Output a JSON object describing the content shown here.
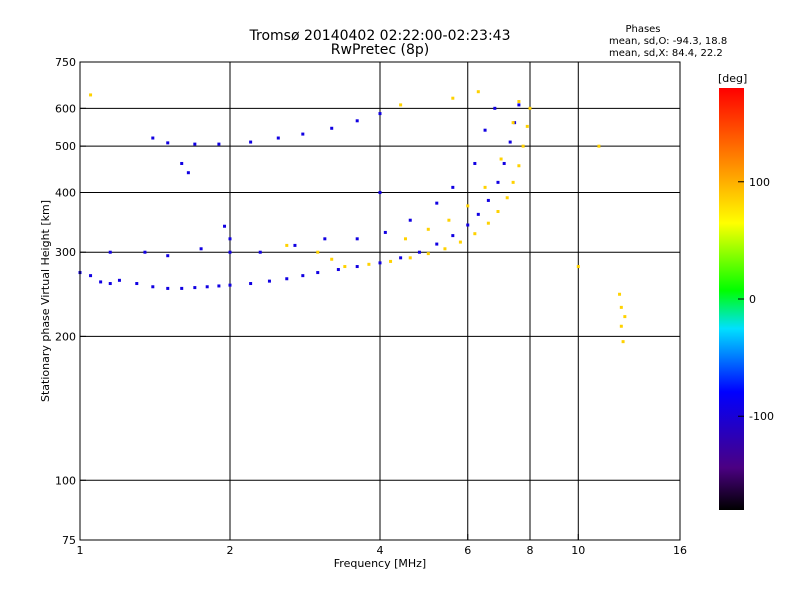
{
  "chart_data": {
    "type": "scatter",
    "title": "Tromsø 20140402 02:22:00-02:23:43",
    "subtitle": "RwPretec (8p)",
    "xlabel": "Frequency [MHz]",
    "ylabel": "Stationary phase Virtual Height [km]",
    "x_scale": "log",
    "y_scale": "log",
    "xlim": [
      1,
      16
    ],
    "ylim": [
      75,
      750
    ],
    "x_ticks": [
      1,
      2,
      4,
      6,
      8,
      10,
      16
    ],
    "x_tick_labels": [
      "1",
      "2",
      "4",
      "6",
      "8",
      "10",
      "16"
    ],
    "x_grid": [
      2,
      4,
      6,
      8,
      10
    ],
    "y_ticks": [
      75,
      100,
      200,
      300,
      400,
      500,
      600,
      750
    ],
    "y_tick_labels": [
      "75",
      "100",
      "200",
      "300",
      "400",
      "500",
      "600",
      "750"
    ],
    "y_grid": [
      100,
      200,
      300,
      400,
      500,
      600
    ],
    "grid": true,
    "stats": {
      "header": "Phases",
      "line_o": "mean, sd,O: -94.3, 18.8",
      "line_x": "mean, sd,X:  84.4, 22.2"
    },
    "colorbar": {
      "label": "[deg]",
      "range": [
        -180,
        180
      ],
      "ticks": [
        -100,
        0,
        100
      ],
      "tick_labels": [
        "-100",
        "0",
        "100"
      ]
    },
    "series": [
      {
        "mode": "O",
        "phase_mean": -94.3,
        "points": [
          [
            1.0,
            272
          ],
          [
            1.05,
            268
          ],
          [
            1.1,
            260
          ],
          [
            1.15,
            258
          ],
          [
            1.2,
            262
          ],
          [
            1.3,
            258
          ],
          [
            1.4,
            254
          ],
          [
            1.5,
            252
          ],
          [
            1.6,
            252
          ],
          [
            1.7,
            253
          ],
          [
            1.8,
            254
          ],
          [
            1.9,
            255
          ],
          [
            2.0,
            256
          ],
          [
            2.2,
            258
          ],
          [
            2.4,
            261
          ],
          [
            2.6,
            264
          ],
          [
            2.8,
            268
          ],
          [
            3.0,
            272
          ],
          [
            3.3,
            276
          ],
          [
            3.6,
            280
          ],
          [
            4.0,
            285
          ],
          [
            4.4,
            292
          ],
          [
            4.8,
            300
          ],
          [
            5.2,
            312
          ],
          [
            5.6,
            325
          ],
          [
            6.0,
            342
          ],
          [
            6.3,
            360
          ],
          [
            6.6,
            385
          ],
          [
            6.9,
            420
          ],
          [
            7.1,
            460
          ],
          [
            7.3,
            510
          ],
          [
            7.45,
            560
          ],
          [
            7.6,
            610
          ],
          [
            1.4,
            520
          ],
          [
            1.5,
            508
          ],
          [
            1.7,
            505
          ],
          [
            1.9,
            505
          ],
          [
            2.2,
            510
          ],
          [
            2.5,
            520
          ],
          [
            2.8,
            530
          ],
          [
            3.2,
            545
          ],
          [
            3.6,
            565
          ],
          [
            4.0,
            585
          ],
          [
            1.15,
            300
          ],
          [
            1.35,
            300
          ],
          [
            1.5,
            295
          ],
          [
            1.75,
            305
          ],
          [
            2.0,
            320
          ],
          [
            2.3,
            300
          ],
          [
            2.7,
            310
          ],
          [
            3.1,
            320
          ],
          [
            3.6,
            320
          ],
          [
            4.1,
            330
          ],
          [
            4.6,
            350
          ],
          [
            5.2,
            380
          ],
          [
            5.6,
            410
          ],
          [
            6.2,
            460
          ],
          [
            6.5,
            540
          ],
          [
            6.8,
            600
          ],
          [
            1.6,
            460
          ],
          [
            1.65,
            440
          ],
          [
            2.0,
            300
          ],
          [
            1.95,
            340
          ],
          [
            4.0,
            400
          ]
        ]
      },
      {
        "mode": "X",
        "phase_mean": 84.4,
        "points": [
          [
            3.4,
            280
          ],
          [
            3.8,
            283
          ],
          [
            4.2,
            287
          ],
          [
            4.6,
            292
          ],
          [
            5.0,
            298
          ],
          [
            5.4,
            305
          ],
          [
            5.8,
            315
          ],
          [
            6.2,
            328
          ],
          [
            6.6,
            345
          ],
          [
            6.9,
            365
          ],
          [
            7.2,
            390
          ],
          [
            7.4,
            420
          ],
          [
            7.6,
            455
          ],
          [
            7.75,
            500
          ],
          [
            7.9,
            550
          ],
          [
            8.0,
            600
          ],
          [
            4.5,
            320
          ],
          [
            5.0,
            335
          ],
          [
            5.5,
            350
          ],
          [
            6.0,
            375
          ],
          [
            6.5,
            410
          ],
          [
            7.0,
            470
          ],
          [
            7.4,
            560
          ],
          [
            7.6,
            620
          ],
          [
            6.3,
            650
          ],
          [
            4.4,
            610
          ],
          [
            5.6,
            630
          ],
          [
            2.6,
            310
          ],
          [
            3.0,
            300
          ],
          [
            3.2,
            290
          ],
          [
            12.2,
            230
          ],
          [
            12.2,
            210
          ],
          [
            12.3,
            195
          ],
          [
            12.4,
            220
          ],
          [
            12.1,
            245
          ],
          [
            1.05,
            640
          ],
          [
            10.0,
            280
          ],
          [
            11.0,
            500
          ]
        ]
      }
    ]
  }
}
